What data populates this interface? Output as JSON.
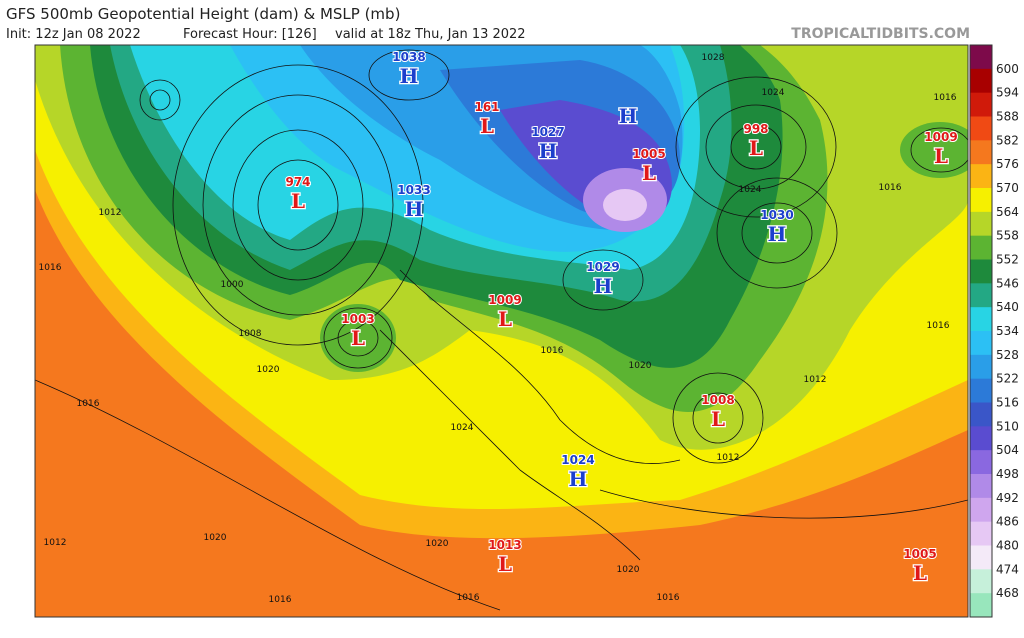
{
  "header": {
    "title": "GFS 500mb Geopotential Height (dam) & MSLP (mb)",
    "init": "Init: 12z Jan 08 2022",
    "forecast_hour": "Forecast Hour: [126]",
    "valid": "valid at 18z Thu, Jan 13 2022",
    "credit": "TROPICALTIDBITS.COM"
  },
  "colorbar": {
    "labels": [
      600,
      594,
      588,
      582,
      576,
      570,
      564,
      558,
      552,
      546,
      540,
      534,
      528,
      522,
      516,
      510,
      504,
      498,
      492,
      486,
      480,
      474,
      468
    ],
    "colors": [
      "#7d0a4a",
      "#a80000",
      "#d01a0a",
      "#f04a14",
      "#f5781e",
      "#fbb414",
      "#f6f000",
      "#b6d628",
      "#5cb432",
      "#1e8a3c",
      "#23a884",
      "#28d4e4",
      "#2cc0f4",
      "#2a9ee8",
      "#2c7ad8",
      "#3a56c8",
      "#5a4cd0",
      "#8a68e0",
      "#b08ae8",
      "#cfa6ee",
      "#e6c8f4",
      "#f4eaf8",
      "#c6f0da",
      "#98e6bc"
    ]
  },
  "pressure_centers": [
    {
      "letter": "H",
      "value": 1038
    },
    {
      "letter": "L",
      "value": 161
    },
    {
      "letter": "H",
      "value": 1027
    },
    {
      "letter": "H"
    },
    {
      "letter": "L",
      "value": 1005
    },
    {
      "letter": "L",
      "value": 998
    },
    {
      "letter": "L",
      "value": 1009
    },
    {
      "letter": "L",
      "value": 974
    },
    {
      "letter": "H",
      "value": 1033
    },
    {
      "letter": "H",
      "value": 1030
    },
    {
      "letter": "H",
      "value": 1029
    },
    {
      "letter": "L",
      "value": 1009
    },
    {
      "letter": "L",
      "value": 1003
    },
    {
      "letter": "L",
      "value": 1008
    },
    {
      "letter": "H",
      "value": 1024
    },
    {
      "letter": "L",
      "value": 1013
    },
    {
      "letter": "L",
      "value": 1005
    }
  ],
  "isobar_labels": [
    1012,
    1016,
    1016,
    1020,
    1020,
    1012,
    1016,
    1020,
    1016,
    1016,
    1012,
    1016,
    1016,
    1024,
    1028,
    1012,
    1024,
    1020,
    1016,
    1000,
    1008,
    1016,
    1020,
    1024
  ]
}
